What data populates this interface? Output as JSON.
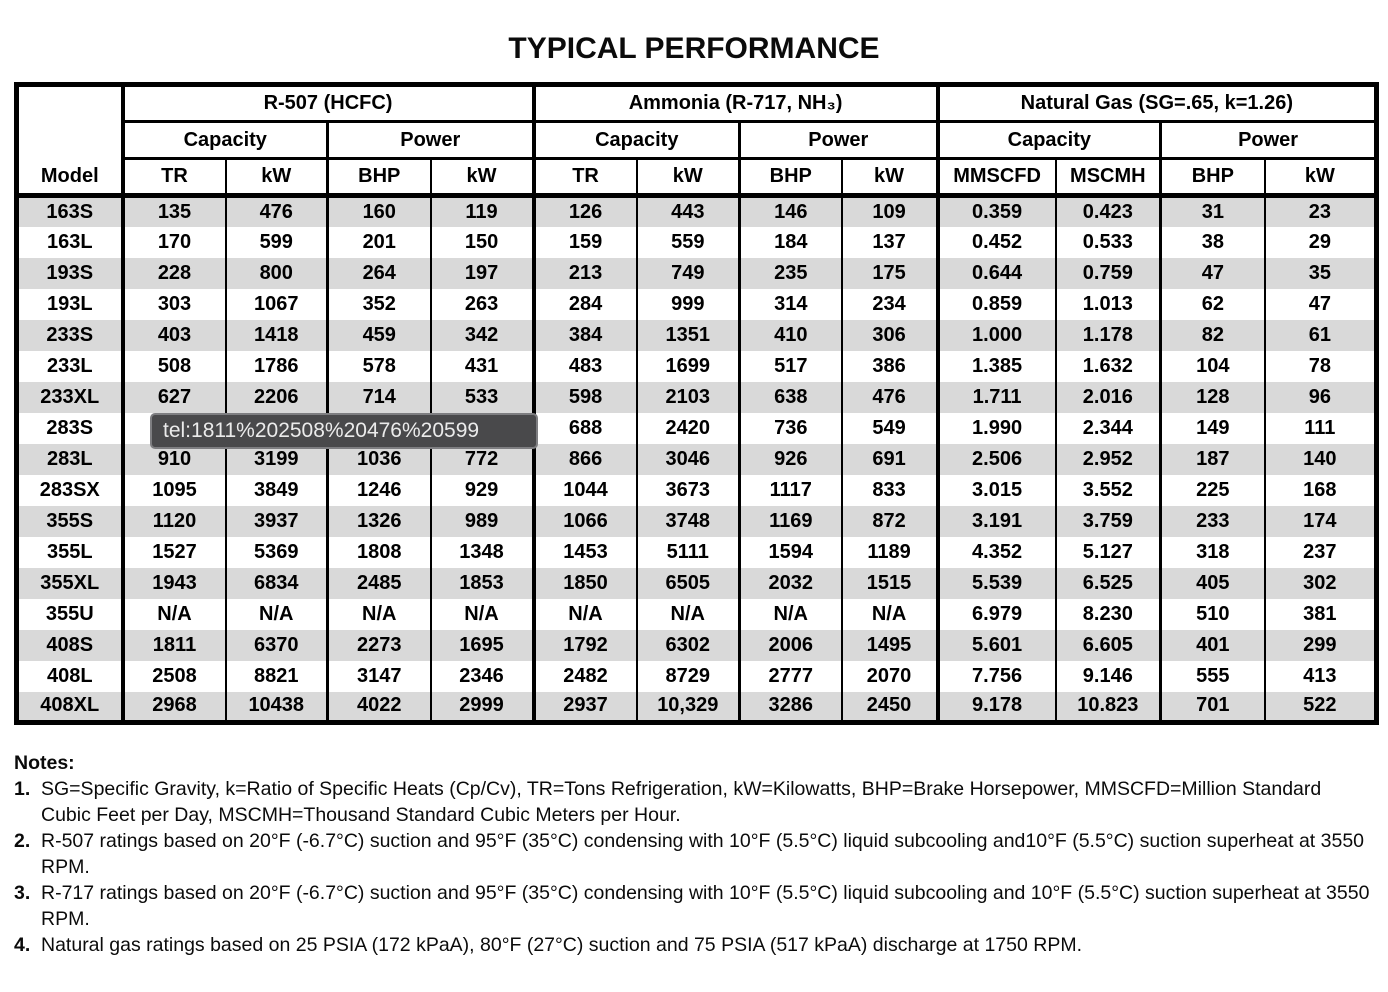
{
  "title": "TYPICAL PERFORMANCE",
  "link_preview_tooltip": {
    "text": "tel:1811%202508%20476%20599"
  },
  "table": {
    "model_header": "Model",
    "sections": [
      {
        "name": "R-507 (HCFC)",
        "capacity_label": "Capacity",
        "power_label": "Power",
        "units": [
          "TR",
          "kW",
          "BHP",
          "kW"
        ]
      },
      {
        "name": "Ammonia (R-717, NH₃)",
        "capacity_label": "Capacity",
        "power_label": "Power",
        "units": [
          "TR",
          "kW",
          "BHP",
          "kW"
        ]
      },
      {
        "name": "Natural Gas (SG=.65, k=1.26)",
        "capacity_label": "Capacity",
        "power_label": "Power",
        "units": [
          "MMSCFD",
          "MSCMH",
          "BHP",
          "kW"
        ]
      }
    ],
    "rows": [
      {
        "model": "163S",
        "cells": [
          "135",
          "476",
          "160",
          "119",
          "126",
          "443",
          "146",
          "109",
          "0.359",
          "0.423",
          "31",
          "23"
        ]
      },
      {
        "model": "163L",
        "cells": [
          "170",
          "599",
          "201",
          "150",
          "159",
          "559",
          "184",
          "137",
          "0.452",
          "0.533",
          "38",
          "29"
        ]
      },
      {
        "model": "193S",
        "cells": [
          "228",
          "800",
          "264",
          "197",
          "213",
          "749",
          "235",
          "175",
          "0.644",
          "0.759",
          "47",
          "35"
        ]
      },
      {
        "model": "193L",
        "cells": [
          "303",
          "1067",
          "352",
          "263",
          "284",
          "999",
          "314",
          "234",
          "0.859",
          "1.013",
          "62",
          "47"
        ]
      },
      {
        "model": "233S",
        "cells": [
          "403",
          "1418",
          "459",
          "342",
          "384",
          "1351",
          "410",
          "306",
          "1.000",
          "1.178",
          "82",
          "61"
        ]
      },
      {
        "model": "233L",
        "cells": [
          "508",
          "1786",
          "578",
          "431",
          "483",
          "1699",
          "517",
          "386",
          "1.385",
          "1.632",
          "104",
          "78"
        ]
      },
      {
        "model": "233XL",
        "cells": [
          "627",
          "2206",
          "714",
          "533",
          "598",
          "2103",
          "638",
          "476",
          "1.711",
          "2.016",
          "128",
          "96"
        ]
      },
      {
        "model": "283S",
        "cells": [
          "",
          "",
          "",
          "",
          "688",
          "2420",
          "736",
          "549",
          "1.990",
          "2.344",
          "149",
          "111"
        ]
      },
      {
        "model": "283L",
        "cells": [
          "910",
          "3199",
          "1036",
          "772",
          "866",
          "3046",
          "926",
          "691",
          "2.506",
          "2.952",
          "187",
          "140"
        ]
      },
      {
        "model": "283SX",
        "cells": [
          "1095",
          "3849",
          "1246",
          "929",
          "1044",
          "3673",
          "1117",
          "833",
          "3.015",
          "3.552",
          "225",
          "168"
        ]
      },
      {
        "model": "355S",
        "cells": [
          "1120",
          "3937",
          "1326",
          "989",
          "1066",
          "3748",
          "1169",
          "872",
          "3.191",
          "3.759",
          "233",
          "174"
        ]
      },
      {
        "model": "355L",
        "cells": [
          "1527",
          "5369",
          "1808",
          "1348",
          "1453",
          "5111",
          "1594",
          "1189",
          "4.352",
          "5.127",
          "318",
          "237"
        ]
      },
      {
        "model": "355XL",
        "cells": [
          "1943",
          "6834",
          "2485",
          "1853",
          "1850",
          "6505",
          "2032",
          "1515",
          "5.539",
          "6.525",
          "405",
          "302"
        ]
      },
      {
        "model": "355U",
        "cells": [
          "N/A",
          "N/A",
          "N/A",
          "N/A",
          "N/A",
          "N/A",
          "N/A",
          "N/A",
          "6.979",
          "8.230",
          "510",
          "381"
        ]
      },
      {
        "model": "408S",
        "cells": [
          "1811",
          "6370",
          "2273",
          "1695",
          "1792",
          "6302",
          "2006",
          "1495",
          "5.601",
          "6.605",
          "401",
          "299"
        ]
      },
      {
        "model": "408L",
        "cells": [
          "2508",
          "8821",
          "3147",
          "2346",
          "2482",
          "8729",
          "2777",
          "2070",
          "7.756",
          "9.146",
          "555",
          "413"
        ]
      },
      {
        "model": "408XL",
        "cells": [
          "2968",
          "10438",
          "4022",
          "2999",
          "2937",
          "10,329",
          "3286",
          "2450",
          "9.178",
          "10.823",
          "701",
          "522"
        ]
      }
    ]
  },
  "notes": {
    "title": "Notes:",
    "items": [
      {
        "num": "1.",
        "text": "SG=Specific Gravity, k=Ratio of Specific Heats (Cp/Cv), TR=Tons Refrigeration, kW=Kilowatts, BHP=Brake Horsepower, MMSCFD=Million Standard Cubic Feet per Day, MSCMH=Thousand Standard Cubic Meters per Hour."
      },
      {
        "num": "2.",
        "text": "R-507 ratings based on 20°F (-6.7°C) suction and 95°F (35°C) condensing with 10°F (5.5°C) liquid subcooling and10°F (5.5°C) suction superheat at 3550 RPM."
      },
      {
        "num": "3.",
        "text": "R-717 ratings based on 20°F (-6.7°C) suction and 95°F (35°C) condensing with 10°F (5.5°C) liquid subcooling and 10°F (5.5°C) suction superheat at 3550 RPM."
      },
      {
        "num": "4.",
        "text": "Natural gas ratings based on 25 PSIA (172 kPaA), 80°F (27°C) suction and 75 PSIA (517 kPaA) discharge at 1750 RPM."
      }
    ]
  }
}
